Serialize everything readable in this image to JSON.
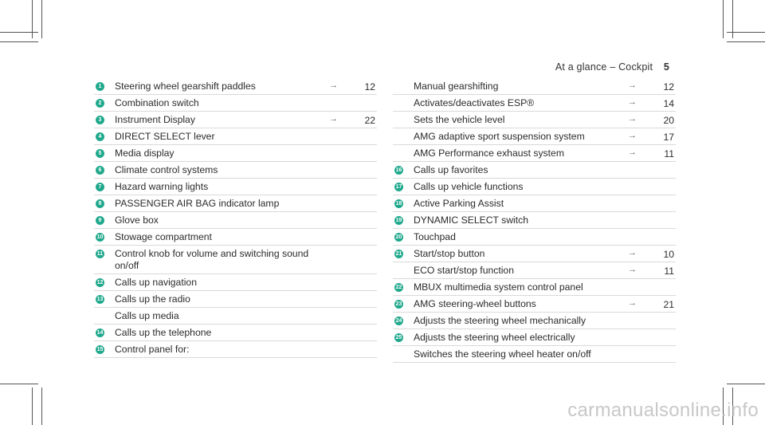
{
  "header": {
    "title": "At a glance – Cockpit",
    "page": "5"
  },
  "left_items": [
    {
      "num": "1",
      "label": "Steering wheel gearshift paddles",
      "arrow": "→",
      "page": "12"
    },
    {
      "num": "2",
      "label": "Combination switch",
      "arrow": "",
      "page": ""
    },
    {
      "num": "3",
      "label": "Instrument Display",
      "arrow": "→",
      "page": "22"
    },
    {
      "num": "4",
      "label": "DIRECT SELECT lever",
      "arrow": "",
      "page": ""
    },
    {
      "num": "5",
      "label": "Media display",
      "arrow": "",
      "page": ""
    },
    {
      "num": "6",
      "label": "Climate control systems",
      "arrow": "",
      "page": ""
    },
    {
      "num": "7",
      "label": "Hazard warning lights",
      "arrow": "",
      "page": ""
    },
    {
      "num": "8",
      "label": "PASSENGER AIR BAG indicator lamp",
      "arrow": "",
      "page": ""
    },
    {
      "num": "9",
      "label": "Glove box",
      "arrow": "",
      "page": ""
    },
    {
      "num": "10",
      "label": "Stowage compartment",
      "arrow": "",
      "page": ""
    },
    {
      "num": "11",
      "label": "Control knob for volume and switching sound\non/off",
      "arrow": "",
      "page": ""
    },
    {
      "num": "12",
      "label": "Calls up navigation",
      "arrow": "",
      "page": ""
    },
    {
      "num": "13",
      "label": "Calls up the radio",
      "arrow": "",
      "page": ""
    },
    {
      "num": "",
      "label": "Calls up media",
      "arrow": "",
      "page": ""
    },
    {
      "num": "14",
      "label": "Calls up the telephone",
      "arrow": "",
      "page": ""
    },
    {
      "num": "15",
      "label": "Control panel for:",
      "arrow": "",
      "page": ""
    }
  ],
  "right_items": [
    {
      "num": "",
      "label": "Manual gearshifting",
      "arrow": "→",
      "page": "12"
    },
    {
      "num": "",
      "label": "Activates/deactivates ESP®",
      "arrow": "→",
      "page": "14"
    },
    {
      "num": "",
      "label": "Sets the vehicle level",
      "arrow": "→",
      "page": "20"
    },
    {
      "num": "",
      "label": "AMG adaptive sport suspension system",
      "arrow": "→",
      "page": "17"
    },
    {
      "num": "",
      "label": "AMG Performance exhaust system",
      "arrow": "→",
      "page": "11"
    },
    {
      "num": "16",
      "label": "Calls up favorites",
      "arrow": "",
      "page": ""
    },
    {
      "num": "17",
      "label": "Calls up vehicle functions",
      "arrow": "",
      "page": ""
    },
    {
      "num": "18",
      "label": "Active Parking Assist",
      "arrow": "",
      "page": ""
    },
    {
      "num": "19",
      "label": "DYNAMIC SELECT switch",
      "arrow": "",
      "page": ""
    },
    {
      "num": "20",
      "label": "Touchpad",
      "arrow": "",
      "page": ""
    },
    {
      "num": "21",
      "label": "Start/stop button",
      "arrow": "→",
      "page": "10"
    },
    {
      "num": "",
      "label": "ECO start/stop function",
      "arrow": "→",
      "page": "11"
    },
    {
      "num": "22",
      "label": "MBUX multimedia system control panel",
      "arrow": "",
      "page": ""
    },
    {
      "num": "23",
      "label": "AMG steering-wheel buttons",
      "arrow": "→",
      "page": "21"
    },
    {
      "num": "24",
      "label": "Adjusts the steering wheel mechanically",
      "arrow": "",
      "page": ""
    },
    {
      "num": "25",
      "label": "Adjusts the steering wheel electrically",
      "arrow": "",
      "page": ""
    },
    {
      "num": "",
      "label": "Switches the steering wheel heater on/off",
      "arrow": "",
      "page": ""
    }
  ],
  "watermark": "carmanualsonline.info",
  "colors": {
    "badge": "#1fa88c",
    "rule": "#d9d9d9"
  }
}
